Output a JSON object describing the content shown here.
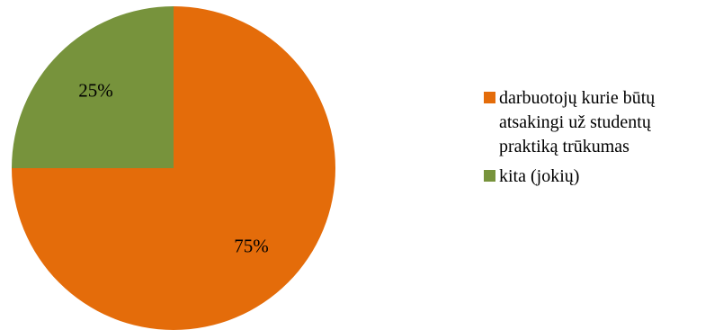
{
  "chart_data": {
    "type": "pie",
    "slices": [
      {
        "label": "darbuotojų kurie būtų atsakingi už studentų praktiką trūkumas",
        "value": 75,
        "display": "75%",
        "color": "#E46C0A"
      },
      {
        "label": "kita (jokių)",
        "value": 25,
        "display": "25%",
        "color": "#77933C"
      }
    ],
    "start_angle": "12 o'clock",
    "direction": "clockwise",
    "legend_position": "right"
  }
}
